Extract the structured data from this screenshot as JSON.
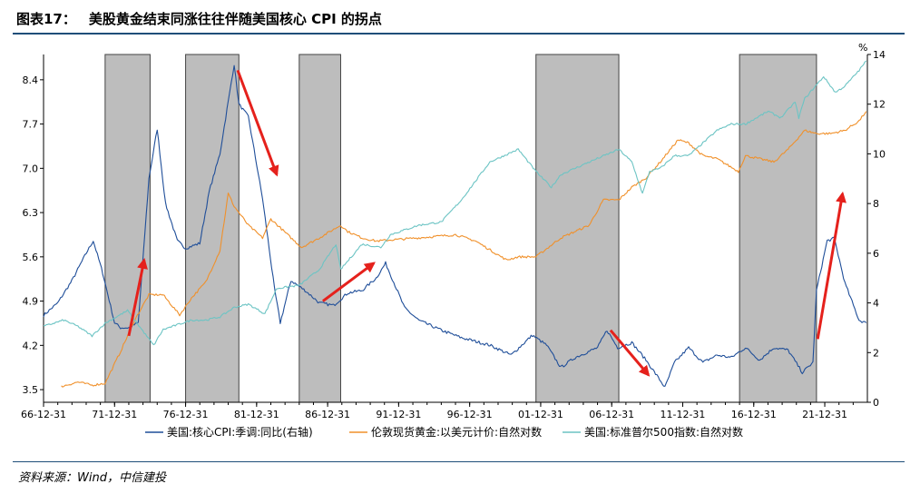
{
  "header": {
    "figure_label": "图表17：",
    "title": "美股黄金结束同涨往往伴随美国核心 CPI 的拐点"
  },
  "source": "资料来源：Wind，中信建投",
  "colors": {
    "cpi": "#1f4e99",
    "gold": "#f0902a",
    "sp500": "#6cc4c4",
    "shade": "#bdbdbd",
    "arrow": "#e5211c"
  },
  "chart_data": {
    "type": "line",
    "x_axis": {
      "range": [
        "1966-12-31",
        "2024-12-31"
      ],
      "tick_labels": [
        "66-12-31",
        "71-12-31",
        "76-12-31",
        "81-12-31",
        "86-12-31",
        "91-12-31",
        "96-12-31",
        "01-12-31",
        "06-12-31",
        "11-12-31",
        "16-12-31",
        "21-12-31"
      ]
    },
    "y_left": {
      "range": [
        3.3,
        8.8
      ],
      "tick_labels": [
        "3.5",
        "4.2",
        "4.9",
        "5.6",
        "6.3",
        "7.0",
        "7.7",
        "8.4"
      ]
    },
    "y_right": {
      "unit": "%",
      "range": [
        0,
        14
      ],
      "tick_labels": [
        "0",
        "2",
        "4",
        "6",
        "8",
        "10",
        "12",
        "14"
      ]
    },
    "shaded_periods": [
      [
        "1971-05-01",
        "1974-07-01"
      ],
      [
        "1977-01-01",
        "1980-10-01"
      ],
      [
        "1985-01-01",
        "1987-12-01"
      ],
      [
        "2001-09-01",
        "2007-07-01"
      ],
      [
        "2016-01-01",
        "2021-06-01"
      ]
    ],
    "series": [
      {
        "name": "美国:核心CPI:季调:同比(右轴)",
        "axis": "right",
        "points": [
          [
            "1967-01-01",
            3.5
          ],
          [
            "1968-01-01",
            4.0
          ],
          [
            "1969-01-01",
            4.9
          ],
          [
            "1970-01-01",
            6.0
          ],
          [
            "1970-07-01",
            6.5
          ],
          [
            "1971-03-01",
            5.2
          ],
          [
            "1972-01-01",
            3.2
          ],
          [
            "1972-06-01",
            3.0
          ],
          [
            "1973-01-01",
            3.0
          ],
          [
            "1973-09-01",
            3.2
          ],
          [
            "1974-06-01",
            9.0
          ],
          [
            "1975-01-01",
            11.0
          ],
          [
            "1975-08-01",
            8.0
          ],
          [
            "1976-06-01",
            6.5
          ],
          [
            "1977-01-01",
            6.2
          ],
          [
            "1978-01-01",
            6.4
          ],
          [
            "1978-09-01",
            8.5
          ],
          [
            "1979-06-01",
            10.0
          ],
          [
            "1980-06-01",
            13.6
          ],
          [
            "1980-10-01",
            12.0
          ],
          [
            "1981-06-01",
            11.5
          ],
          [
            "1982-06-01",
            8.2
          ],
          [
            "1983-04-01",
            4.6
          ],
          [
            "1983-09-01",
            3.2
          ],
          [
            "1984-06-01",
            4.9
          ],
          [
            "1985-06-01",
            4.5
          ],
          [
            "1986-06-01",
            4.0
          ],
          [
            "1987-06-01",
            3.9
          ],
          [
            "1988-06-01",
            4.4
          ],
          [
            "1989-06-01",
            4.5
          ],
          [
            "1990-06-01",
            5.0
          ],
          [
            "1991-02-01",
            5.6
          ],
          [
            "1992-06-01",
            3.8
          ],
          [
            "1993-06-01",
            3.3
          ],
          [
            "1995-01-01",
            2.9
          ],
          [
            "1996-06-01",
            2.6
          ],
          [
            "1998-06-01",
            2.3
          ],
          [
            "1999-12-01",
            1.9
          ],
          [
            "2001-06-01",
            2.7
          ],
          [
            "2002-06-01",
            2.3
          ],
          [
            "2003-06-01",
            1.4
          ],
          [
            "2004-06-01",
            1.8
          ],
          [
            "2006-01-01",
            2.2
          ],
          [
            "2006-09-01",
            2.9
          ],
          [
            "2007-06-01",
            2.2
          ],
          [
            "2008-06-01",
            2.4
          ],
          [
            "2009-06-01",
            1.7
          ],
          [
            "2010-10-01",
            0.6
          ],
          [
            "2011-06-01",
            1.6
          ],
          [
            "2012-06-01",
            2.2
          ],
          [
            "2013-06-01",
            1.6
          ],
          [
            "2014-06-01",
            1.9
          ],
          [
            "2015-06-01",
            1.8
          ],
          [
            "2016-06-01",
            2.2
          ],
          [
            "2017-06-01",
            1.7
          ],
          [
            "2018-06-01",
            2.2
          ],
          [
            "2019-06-01",
            2.1
          ],
          [
            "2020-06-01",
            1.2
          ],
          [
            "2021-03-01",
            1.6
          ],
          [
            "2021-06-01",
            4.5
          ],
          [
            "2022-03-01",
            6.5
          ],
          [
            "2022-09-01",
            6.6
          ],
          [
            "2023-06-01",
            4.8
          ],
          [
            "2024-06-01",
            3.3
          ],
          [
            "2024-12-01",
            3.2
          ]
        ]
      },
      {
        "name": "伦敦现货黄金:以美元计价:自然对数",
        "axis": "left",
        "points": [
          [
            "1968-04-01",
            3.55
          ],
          [
            "1969-06-01",
            3.62
          ],
          [
            "1970-06-01",
            3.57
          ],
          [
            "1971-05-01",
            3.6
          ],
          [
            "1972-06-01",
            4.1
          ],
          [
            "1973-06-01",
            4.6
          ],
          [
            "1974-06-01",
            5.0
          ],
          [
            "1975-06-01",
            5.0
          ],
          [
            "1976-08-01",
            4.68
          ],
          [
            "1977-06-01",
            4.95
          ],
          [
            "1978-06-01",
            5.2
          ],
          [
            "1979-06-01",
            5.7
          ],
          [
            "1980-01-01",
            6.6
          ],
          [
            "1980-06-01",
            6.4
          ],
          [
            "1981-06-01",
            6.1
          ],
          [
            "1982-06-01",
            5.9
          ],
          [
            "1983-01-01",
            6.2
          ],
          [
            "1984-06-01",
            5.9
          ],
          [
            "1985-03-01",
            5.75
          ],
          [
            "1986-06-01",
            5.9
          ],
          [
            "1987-12-01",
            6.1
          ],
          [
            "1988-06-01",
            6.0
          ],
          [
            "1989-06-01",
            5.9
          ],
          [
            "1990-06-01",
            5.85
          ],
          [
            "1993-06-01",
            5.9
          ],
          [
            "1996-01-01",
            5.95
          ],
          [
            "1997-06-01",
            5.85
          ],
          [
            "1999-08-01",
            5.55
          ],
          [
            "2000-06-01",
            5.6
          ],
          [
            "2001-09-01",
            5.6
          ],
          [
            "2003-06-01",
            5.9
          ],
          [
            "2005-06-01",
            6.1
          ],
          [
            "2006-06-01",
            6.5
          ],
          [
            "2007-07-01",
            6.5
          ],
          [
            "2008-06-01",
            6.7
          ],
          [
            "2009-06-01",
            6.85
          ],
          [
            "2010-06-01",
            7.1
          ],
          [
            "2011-09-01",
            7.45
          ],
          [
            "2012-06-01",
            7.4
          ],
          [
            "2013-06-01",
            7.2
          ],
          [
            "2014-06-01",
            7.15
          ],
          [
            "2015-12-01",
            6.95
          ],
          [
            "2016-06-01",
            7.2
          ],
          [
            "2018-06-01",
            7.1
          ],
          [
            "2019-06-01",
            7.3
          ],
          [
            "2020-08-01",
            7.6
          ],
          [
            "2021-06-01",
            7.55
          ],
          [
            "2022-06-01",
            7.55
          ],
          [
            "2023-06-01",
            7.6
          ],
          [
            "2024-06-01",
            7.75
          ],
          [
            "2024-12-01",
            7.9
          ]
        ]
      },
      {
        "name": "美国:标准普尔500指数:自然对数",
        "axis": "left",
        "points": [
          [
            "1967-01-01",
            4.5
          ],
          [
            "1968-06-01",
            4.6
          ],
          [
            "1969-06-01",
            4.5
          ],
          [
            "1970-06-01",
            4.35
          ],
          [
            "1971-05-01",
            4.55
          ],
          [
            "1972-12-01",
            4.75
          ],
          [
            "1973-06-01",
            4.6
          ],
          [
            "1974-10-01",
            4.2
          ],
          [
            "1975-06-01",
            4.45
          ],
          [
            "1977-06-01",
            4.6
          ],
          [
            "1978-06-01",
            4.6
          ],
          [
            "1979-06-01",
            4.65
          ],
          [
            "1980-06-01",
            4.8
          ],
          [
            "1981-06-01",
            4.85
          ],
          [
            "1982-08-01",
            4.7
          ],
          [
            "1983-06-01",
            5.1
          ],
          [
            "1985-01-01",
            5.15
          ],
          [
            "1986-06-01",
            5.4
          ],
          [
            "1987-08-01",
            5.8
          ],
          [
            "1987-12-01",
            5.4
          ],
          [
            "1989-06-01",
            5.8
          ],
          [
            "1990-10-01",
            5.75
          ],
          [
            "1991-06-01",
            5.95
          ],
          [
            "1993-06-01",
            6.1
          ],
          [
            "1995-01-01",
            6.15
          ],
          [
            "1996-06-01",
            6.5
          ],
          [
            "1997-06-01",
            6.8
          ],
          [
            "1998-06-01",
            7.1
          ],
          [
            "2000-06-01",
            7.3
          ],
          [
            "2001-09-01",
            6.95
          ],
          [
            "2002-10-01",
            6.7
          ],
          [
            "2003-06-01",
            6.9
          ],
          [
            "2005-06-01",
            7.1
          ],
          [
            "2007-07-01",
            7.3
          ],
          [
            "2008-06-01",
            7.1
          ],
          [
            "2009-03-01",
            6.6
          ],
          [
            "2009-09-01",
            6.95
          ],
          [
            "2010-06-01",
            7.0
          ],
          [
            "2011-06-01",
            7.2
          ],
          [
            "2012-06-01",
            7.2
          ],
          [
            "2013-06-01",
            7.4
          ],
          [
            "2014-06-01",
            7.6
          ],
          [
            "2015-06-01",
            7.7
          ],
          [
            "2016-06-01",
            7.7
          ],
          [
            "2018-01-01",
            7.9
          ],
          [
            "2018-12-01",
            7.8
          ],
          [
            "2019-12-01",
            8.05
          ],
          [
            "2020-03-01",
            7.8
          ],
          [
            "2020-08-01",
            8.1
          ],
          [
            "2021-12-01",
            8.45
          ],
          [
            "2022-10-01",
            8.2
          ],
          [
            "2023-06-01",
            8.3
          ],
          [
            "2024-06-01",
            8.55
          ],
          [
            "2024-12-01",
            8.7
          ]
        ]
      }
    ],
    "arrows": [
      [
        [
          "1973-01-01",
          4.35
        ],
        [
          "1974-02-01",
          5.55
        ]
      ],
      [
        [
          "1980-09-01",
          8.55
        ],
        [
          "1983-06-01",
          6.9
        ]
      ],
      [
        [
          "1986-09-01",
          4.9
        ],
        [
          "1990-04-01",
          5.5
        ]
      ],
      [
        [
          "2006-12-01",
          2.9
        ],
        [
          "2009-08-01",
          1.1
        ]
      ],
      [
        [
          "2021-07-01",
          4.3
        ],
        [
          "2023-04-01",
          6.6
        ]
      ]
    ]
  }
}
